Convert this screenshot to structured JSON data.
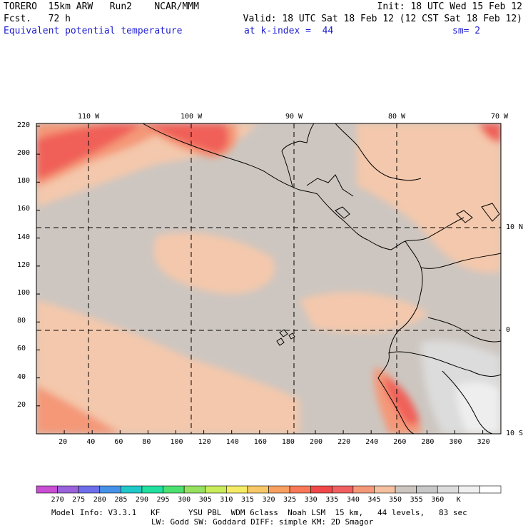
{
  "header": {
    "model": "TORERO  15km ARW   Run2    NCAR/MMM",
    "init": "Init: 18 UTC Wed 15 Feb 12",
    "forecast": "Fcst.   72 h",
    "valid": "Valid: 18 UTC Sat 18 Feb 12 (12 CST Sat 18 Feb 12)",
    "field": "Equivalent potential temperature",
    "level": "at k-index =  44",
    "smoothing": "sm= 2"
  },
  "longitude_labels": [
    "110 W",
    "100 W",
    "90 W",
    "80 W",
    "70 W"
  ],
  "latitude_labels": [
    "10 N",
    "0",
    "10 S"
  ],
  "y_grid_ticks": [
    "220",
    "200",
    "180",
    "160",
    "140",
    "120",
    "100",
    "80",
    "60",
    "40",
    "20"
  ],
  "x_grid_ticks": [
    "20",
    "40",
    "60",
    "80",
    "100",
    "120",
    "140",
    "160",
    "180",
    "200",
    "220",
    "240",
    "260",
    "280",
    "300",
    "320"
  ],
  "colorbar": {
    "colors": [
      "#c84ed2",
      "#9a62dc",
      "#6e6eec",
      "#4692e8",
      "#20c8c8",
      "#20e0a0",
      "#4ce070",
      "#96e060",
      "#c8ec5a",
      "#f4ec64",
      "#f8c868",
      "#f8a060",
      "#f87858",
      "#f04848",
      "#f06060",
      "#f49878",
      "#f4c0a0",
      "#cdc6c0",
      "#c8c8c8",
      "#dcdcdc",
      "#f0f0f0",
      "#ffffff"
    ],
    "labels": [
      "270",
      "275",
      "280",
      "285",
      "290",
      "295",
      "300",
      "305",
      "310",
      "315",
      "320",
      "325",
      "330",
      "335",
      "340",
      "345",
      "350",
      "355",
      "360",
      "K"
    ]
  },
  "footer": {
    "line1": "Model Info: V3.3.1   KF      YSU PBL  WDM 6class  Noah LSM  15 km,   44 levels,   83 sec",
    "line2": "LW: Godd SW: Goddard DIFF: simple KM: 2D Smagor"
  },
  "colors": {
    "background_field": "#cdc6c0",
    "warm_field": "#f4c8ac",
    "hot_field": "#f06058",
    "salmon_field": "#f49878",
    "cool_field": "#d8d8d8"
  }
}
